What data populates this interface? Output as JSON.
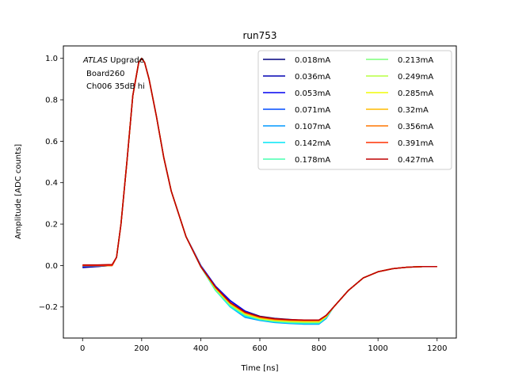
{
  "chart_data": {
    "type": "line",
    "title": "run753",
    "xlabel": "Time [ns]",
    "ylabel": "Amplitude [ADC counts]",
    "xlim": [
      -65,
      1265
    ],
    "ylim": [
      -0.35,
      1.06
    ],
    "xticks": [
      0,
      200,
      400,
      600,
      800,
      1000,
      1200
    ],
    "yticks": [
      -0.2,
      0.0,
      0.2,
      0.4,
      0.6,
      0.8,
      1.0
    ],
    "xtick_labels": [
      "0",
      "200",
      "400",
      "600",
      "800",
      "1000",
      "1200"
    ],
    "ytick_labels": [
      "−0.2",
      "0.0",
      "0.2",
      "0.4",
      "0.6",
      "0.8",
      "1.0"
    ],
    "grid": false,
    "legend_position": "top-right",
    "legend_columns": 2,
    "annotation": {
      "line1_italic": "ATLAS",
      "line1_rest": " Upgrade",
      "line2": "Board260",
      "line3": "Ch006 35dB hi"
    },
    "x": [
      0,
      50,
      100,
      115,
      130,
      150,
      170,
      190,
      200,
      210,
      225,
      250,
      275,
      300,
      350,
      400,
      450,
      500,
      550,
      600,
      650,
      700,
      750,
      800,
      825,
      850,
      900,
      950,
      1000,
      1050,
      1100,
      1150,
      1200
    ],
    "series": [
      {
        "name": "0.018mA",
        "color": "#00007f",
        "values": [
          -0.01,
          -0.005,
          0.0,
          0.04,
          0.2,
          0.5,
          0.82,
          0.98,
          1.0,
          0.98,
          0.9,
          0.72,
          0.52,
          0.36,
          0.14,
          0.0,
          -0.1,
          -0.17,
          -0.22,
          -0.245,
          -0.255,
          -0.26,
          -0.265,
          -0.265,
          -0.24,
          -0.2,
          -0.12,
          -0.06,
          -0.03,
          -0.015,
          -0.008,
          -0.005,
          -0.005
        ]
      },
      {
        "name": "0.036mA",
        "color": "#0000b2",
        "values": [
          -0.008,
          -0.004,
          0.0,
          0.04,
          0.2,
          0.5,
          0.82,
          0.98,
          1.0,
          0.98,
          0.9,
          0.72,
          0.52,
          0.36,
          0.14,
          0.0,
          -0.1,
          -0.17,
          -0.22,
          -0.247,
          -0.258,
          -0.262,
          -0.267,
          -0.267,
          -0.24,
          -0.2,
          -0.12,
          -0.06,
          -0.03,
          -0.015,
          -0.008,
          -0.005,
          -0.005
        ]
      },
      {
        "name": "0.053mA",
        "color": "#0000f1",
        "values": [
          -0.005,
          -0.003,
          0.0,
          0.04,
          0.2,
          0.5,
          0.82,
          0.98,
          1.0,
          0.98,
          0.9,
          0.72,
          0.52,
          0.36,
          0.14,
          0.0,
          -0.1,
          -0.17,
          -0.22,
          -0.25,
          -0.26,
          -0.265,
          -0.27,
          -0.27,
          -0.245,
          -0.2,
          -0.12,
          -0.06,
          -0.03,
          -0.015,
          -0.008,
          -0.005,
          -0.005
        ]
      },
      {
        "name": "0.071mA",
        "color": "#004cff",
        "values": [
          -0.003,
          -0.002,
          0.0,
          0.04,
          0.2,
          0.5,
          0.82,
          0.98,
          1.0,
          0.98,
          0.9,
          0.72,
          0.52,
          0.36,
          0.14,
          0.0,
          -0.11,
          -0.18,
          -0.23,
          -0.255,
          -0.265,
          -0.27,
          -0.275,
          -0.275,
          -0.25,
          -0.2,
          -0.12,
          -0.06,
          -0.03,
          -0.015,
          -0.008,
          -0.005,
          -0.005
        ]
      },
      {
        "name": "0.107mA",
        "color": "#0098ff",
        "values": [
          0.0,
          0.0,
          0.0,
          0.04,
          0.2,
          0.5,
          0.82,
          0.98,
          1.0,
          0.98,
          0.9,
          0.72,
          0.52,
          0.36,
          0.14,
          -0.005,
          -0.12,
          -0.2,
          -0.25,
          -0.265,
          -0.275,
          -0.28,
          -0.283,
          -0.283,
          -0.255,
          -0.2,
          -0.12,
          -0.06,
          -0.03,
          -0.015,
          -0.008,
          -0.005,
          -0.005
        ]
      },
      {
        "name": "0.142mA",
        "color": "#00e5f7",
        "values": [
          0.0,
          0.0,
          0.0,
          0.04,
          0.2,
          0.5,
          0.82,
          0.98,
          1.0,
          0.98,
          0.9,
          0.72,
          0.52,
          0.36,
          0.14,
          -0.005,
          -0.12,
          -0.2,
          -0.245,
          -0.262,
          -0.272,
          -0.277,
          -0.28,
          -0.28,
          -0.25,
          -0.2,
          -0.12,
          -0.06,
          -0.03,
          -0.015,
          -0.008,
          -0.005,
          -0.005
        ]
      },
      {
        "name": "0.178mA",
        "color": "#46ffb1",
        "values": [
          0.0,
          0.0,
          0.0,
          0.04,
          0.2,
          0.5,
          0.82,
          0.98,
          1.0,
          0.98,
          0.9,
          0.72,
          0.52,
          0.36,
          0.14,
          -0.005,
          -0.12,
          -0.195,
          -0.24,
          -0.26,
          -0.27,
          -0.275,
          -0.277,
          -0.277,
          -0.25,
          -0.2,
          -0.12,
          -0.06,
          -0.03,
          -0.015,
          -0.008,
          -0.005,
          -0.005
        ]
      },
      {
        "name": "0.213mA",
        "color": "#7dff7a",
        "values": [
          0.0,
          0.0,
          0.0,
          0.04,
          0.2,
          0.5,
          0.82,
          0.98,
          1.0,
          0.98,
          0.9,
          0.72,
          0.52,
          0.36,
          0.14,
          -0.005,
          -0.115,
          -0.19,
          -0.238,
          -0.258,
          -0.268,
          -0.272,
          -0.275,
          -0.275,
          -0.248,
          -0.2,
          -0.12,
          -0.06,
          -0.03,
          -0.015,
          -0.008,
          -0.005,
          -0.005
        ]
      },
      {
        "name": "0.249mA",
        "color": "#b7ff40",
        "values": [
          0.0,
          0.0,
          0.0,
          0.04,
          0.2,
          0.5,
          0.82,
          0.98,
          1.0,
          0.98,
          0.9,
          0.72,
          0.52,
          0.36,
          0.14,
          -0.005,
          -0.112,
          -0.188,
          -0.235,
          -0.256,
          -0.266,
          -0.27,
          -0.272,
          -0.272,
          -0.246,
          -0.2,
          -0.12,
          -0.06,
          -0.03,
          -0.015,
          -0.008,
          -0.005,
          -0.005
        ]
      },
      {
        "name": "0.285mA",
        "color": "#f1fc06",
        "values": [
          0.0,
          0.0,
          0.0,
          0.04,
          0.2,
          0.5,
          0.82,
          0.98,
          1.0,
          0.98,
          0.9,
          0.72,
          0.52,
          0.36,
          0.14,
          -0.005,
          -0.11,
          -0.185,
          -0.232,
          -0.254,
          -0.264,
          -0.268,
          -0.27,
          -0.27,
          -0.245,
          -0.2,
          -0.12,
          -0.06,
          -0.03,
          -0.015,
          -0.008,
          -0.005,
          -0.005
        ]
      },
      {
        "name": "0.32mA",
        "color": "#ffba00",
        "values": [
          0.0,
          0.0,
          0.0,
          0.04,
          0.2,
          0.5,
          0.82,
          0.98,
          1.0,
          0.98,
          0.9,
          0.72,
          0.52,
          0.36,
          0.14,
          -0.005,
          -0.108,
          -0.183,
          -0.23,
          -0.252,
          -0.262,
          -0.266,
          -0.268,
          -0.268,
          -0.243,
          -0.2,
          -0.12,
          -0.06,
          -0.03,
          -0.015,
          -0.008,
          -0.005,
          -0.005
        ]
      },
      {
        "name": "0.356mA",
        "color": "#ff7700",
        "values": [
          0.0,
          0.0,
          0.0,
          0.04,
          0.2,
          0.5,
          0.82,
          0.98,
          1.0,
          0.98,
          0.9,
          0.72,
          0.52,
          0.36,
          0.14,
          -0.005,
          -0.106,
          -0.181,
          -0.228,
          -0.25,
          -0.26,
          -0.264,
          -0.266,
          -0.266,
          -0.242,
          -0.2,
          -0.12,
          -0.06,
          -0.03,
          -0.015,
          -0.008,
          -0.005,
          -0.005
        ]
      },
      {
        "name": "0.391mA",
        "color": "#ff3000",
        "values": [
          0.0,
          0.0,
          0.0,
          0.04,
          0.2,
          0.5,
          0.82,
          0.98,
          1.0,
          0.98,
          0.9,
          0.72,
          0.52,
          0.36,
          0.14,
          -0.005,
          -0.105,
          -0.18,
          -0.226,
          -0.248,
          -0.258,
          -0.262,
          -0.264,
          -0.264,
          -0.24,
          -0.2,
          -0.12,
          -0.06,
          -0.03,
          -0.015,
          -0.008,
          -0.005,
          -0.005
        ]
      },
      {
        "name": "0.427mA",
        "color": "#bf0000",
        "values": [
          0.003,
          0.003,
          0.005,
          0.04,
          0.2,
          0.5,
          0.82,
          0.98,
          1.0,
          0.98,
          0.9,
          0.72,
          0.52,
          0.36,
          0.14,
          -0.005,
          -0.104,
          -0.179,
          -0.225,
          -0.247,
          -0.257,
          -0.261,
          -0.263,
          -0.263,
          -0.24,
          -0.2,
          -0.12,
          -0.06,
          -0.03,
          -0.015,
          -0.008,
          -0.005,
          -0.005
        ]
      }
    ]
  }
}
